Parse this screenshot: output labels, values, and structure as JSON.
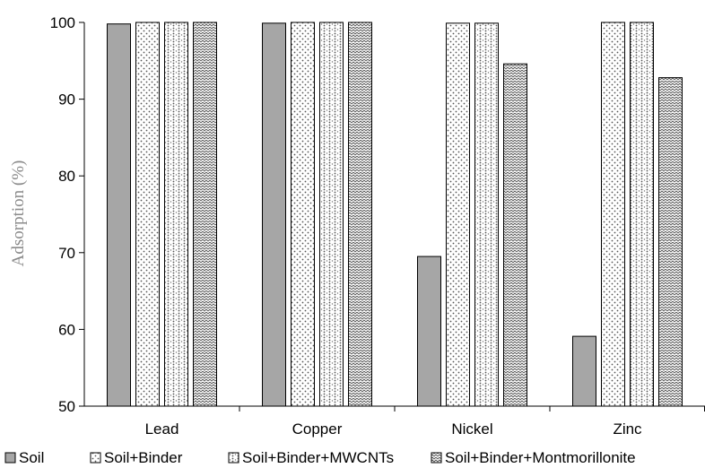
{
  "chart_data": {
    "type": "bar",
    "categories": [
      "Lead",
      "Copper",
      "Nickel",
      "Zinc"
    ],
    "series": [
      {
        "name": "Soil",
        "values": [
          99.8,
          99.9,
          69.5,
          59.1
        ],
        "pattern": "solid",
        "color": "#a6a6a6"
      },
      {
        "name": "Soil+Binder",
        "values": [
          100,
          100,
          99.9,
          100
        ],
        "pattern": "diagonal-dots"
      },
      {
        "name": "Soil+Binder+MWCNTs",
        "values": [
          100,
          100,
          99.9,
          100
        ],
        "pattern": "vertical-dots"
      },
      {
        "name": "Soil+Binder+Montmorillonite",
        "values": [
          100,
          100,
          94.6,
          92.8
        ],
        "pattern": "zigzag"
      }
    ],
    "ylabel": "Adsorption (%)",
    "xlabel": "",
    "ylim": [
      50,
      100
    ],
    "yticks": [
      50,
      60,
      70,
      80,
      90,
      100
    ],
    "grid": false,
    "legend_position": "bottom"
  }
}
